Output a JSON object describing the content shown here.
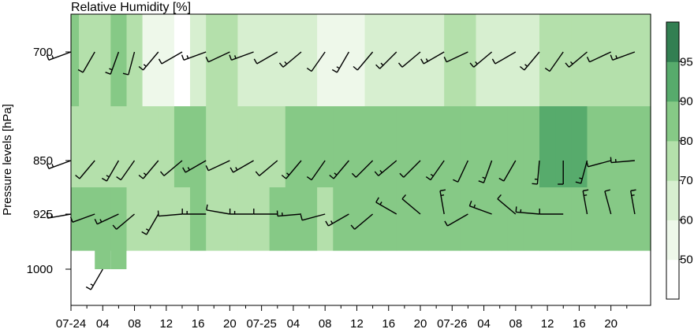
{
  "chart_data": {
    "type": "heatmap",
    "title": "Relative Humidity [%]",
    "ylabel": "Pressure levels [hPa]",
    "xlabel": "",
    "x_ticks": [
      "07-24",
      "04",
      "08",
      "12",
      "16",
      "20",
      "07-25",
      "04",
      "08",
      "12",
      "16",
      "20",
      "07-26",
      "04",
      "08",
      "12",
      "16",
      "20"
    ],
    "y_ticks": [
      700,
      850,
      925,
      1000
    ],
    "y_axis": "pressure, inverted",
    "colorbar": {
      "levels": [
        50,
        60,
        70,
        80,
        90,
        95
      ],
      "colors": [
        "#ffffff",
        "#eef8ea",
        "#d7efd0",
        "#b4e0ab",
        "#86c986",
        "#57ab6c",
        "#327f52"
      ]
    },
    "levels_hpa": [
      700,
      850,
      925,
      1000
    ],
    "hours_from_start": [
      0,
      2,
      4,
      6,
      8,
      10,
      12,
      14,
      16,
      18,
      20,
      22,
      24,
      26,
      28,
      30,
      32,
      34,
      36,
      38,
      40,
      42,
      44,
      46,
      48,
      50,
      52,
      54,
      56,
      58,
      60,
      62,
      64,
      66,
      68,
      70
    ],
    "rh": {
      "700": [
        82,
        78,
        74,
        80,
        70,
        58,
        54,
        48,
        62,
        70,
        72,
        68,
        64,
        68,
        66,
        60,
        58,
        56,
        58,
        62,
        66,
        64,
        66,
        68,
        70,
        70,
        68,
        66,
        66,
        68,
        70,
        72,
        74,
        74,
        76,
        78
      ],
      "850": [
        74,
        70,
        72,
        76,
        78,
        76,
        74,
        80,
        86,
        78,
        76,
        74,
        72,
        76,
        80,
        82,
        82,
        80,
        82,
        84,
        82,
        82,
        80,
        82,
        84,
        82,
        84,
        86,
        86,
        88,
        90,
        92,
        90,
        86,
        86,
        86
      ],
      "925": [
        84,
        86,
        86,
        84,
        76,
        72,
        74,
        78,
        80,
        78,
        76,
        78,
        76,
        80,
        82,
        80,
        78,
        80,
        84,
        80,
        82,
        80,
        80,
        82,
        84,
        86,
        86,
        84,
        86,
        88,
        88,
        86,
        84,
        84,
        84,
        84
      ],
      "1000": [
        null,
        null,
        86,
        86,
        null,
        null,
        null,
        null,
        null,
        null,
        null,
        null,
        null,
        null,
        null,
        null,
        null,
        null,
        null,
        null,
        null,
        null,
        null,
        null,
        null,
        null,
        null,
        null,
        null,
        null,
        null,
        null,
        null,
        null,
        null,
        null
      ]
    },
    "wind_barbs": {
      "700": {
        "hours": [
          0,
          3,
          6,
          8,
          11,
          14,
          17,
          20,
          23,
          26,
          29,
          32,
          35,
          38,
          41,
          44,
          47,
          50,
          53,
          56,
          59,
          62,
          65,
          68,
          71
        ],
        "dir_deg": [
          250,
          210,
          200,
          195,
          220,
          240,
          250,
          245,
          250,
          240,
          230,
          215,
          210,
          220,
          225,
          230,
          240,
          245,
          230,
          240,
          220,
          215,
          230,
          245,
          250
        ]
      },
      "850": {
        "hours": [
          0,
          3,
          6,
          8,
          11,
          14,
          17,
          20,
          23,
          26,
          29,
          32,
          35,
          38,
          41,
          44,
          47,
          50,
          53,
          56,
          59,
          62,
          65,
          68,
          71
        ],
        "dir_deg": [
          250,
          220,
          210,
          215,
          220,
          230,
          240,
          245,
          240,
          230,
          220,
          215,
          220,
          225,
          230,
          225,
          215,
          205,
          200,
          210,
          185,
          180,
          195,
          255,
          265
        ]
      },
      "925": {
        "hours": [
          0,
          3,
          6,
          8,
          11,
          14,
          17,
          20,
          23,
          26,
          29,
          32,
          35,
          38,
          41,
          44,
          47,
          50,
          53,
          56,
          59,
          62,
          65,
          68,
          71
        ],
        "dir_deg": [
          260,
          250,
          245,
          230,
          210,
          265,
          270,
          280,
          270,
          270,
          265,
          255,
          240,
          230,
          300,
          310,
          350,
          240,
          290,
          310,
          275,
          270,
          350,
          345,
          350
        ]
      },
      "1000": {
        "hours": [
          4
        ],
        "dir_deg": [
          210
        ]
      }
    }
  }
}
